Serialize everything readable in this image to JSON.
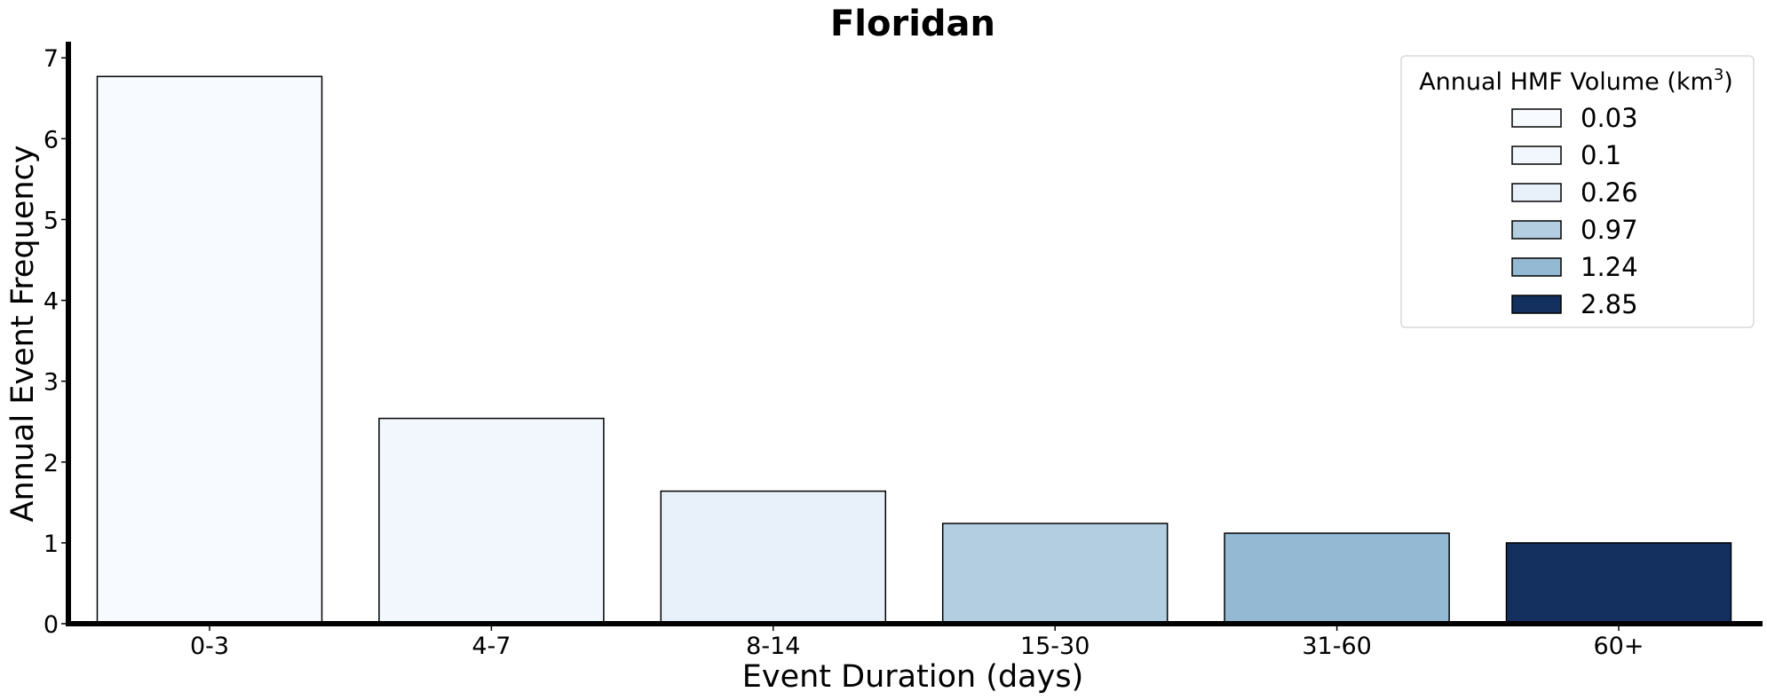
{
  "chart_data": {
    "type": "bar",
    "title": "Floridan",
    "xlabel": "Event Duration (days)",
    "ylabel": "Annual Event Frequency",
    "categories": [
      "0-3",
      "4-7",
      "8-14",
      "15-30",
      "31-60",
      "60+"
    ],
    "values": [
      6.77,
      2.54,
      1.64,
      1.24,
      1.12,
      1.0
    ],
    "ylim": [
      0,
      7.2
    ],
    "yticks": [
      0,
      1,
      2,
      3,
      4,
      5,
      6,
      7
    ],
    "ytick_labels": [
      "0",
      "1",
      "2",
      "3",
      "4",
      "5",
      "6",
      "7"
    ],
    "bar_colors": [
      "#f7fbff",
      "#f2f7fd",
      "#e8f1fa",
      "#b3cee0",
      "#93bad2",
      "#13305f"
    ],
    "grid": false,
    "legend": {
      "title": "Annual HMF Volume (km",
      "title_sup": "3",
      "title_end": ")",
      "placement": "top-right",
      "entries": [
        "0.03",
        "0.1",
        "0.26",
        "0.97",
        "1.24",
        "2.85"
      ]
    }
  }
}
